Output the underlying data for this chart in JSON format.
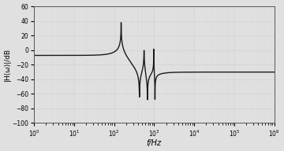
{
  "xlim": [
    1,
    1000000.0
  ],
  "ylim": [
    -100,
    60
  ],
  "xlabel": "f/Hz",
  "ylabel": "|H(ω)|/dB",
  "bg_color": "#e0e0e0",
  "line_color": "#1a1a1a",
  "line_width": 1.0,
  "yticks": [
    -100,
    -80,
    -60,
    -40,
    -20,
    0,
    20,
    40,
    60
  ],
  "xticks": [
    1,
    10,
    100,
    1000,
    10000,
    100000,
    1000000
  ],
  "f_peak1": 150,
  "Q_peak1": 200,
  "f_notch1": 430,
  "Q_notch1": 150,
  "f_peak2": 560,
  "Q_peak2": 120,
  "f_notch2": 680,
  "Q_notch2": 200,
  "f_peak3": 980,
  "Q_peak3": 400,
  "f_notch3": 1050,
  "Q_notch3": 400,
  "dc_gain_db": 0.0,
  "hf_gain_db": -30.0
}
